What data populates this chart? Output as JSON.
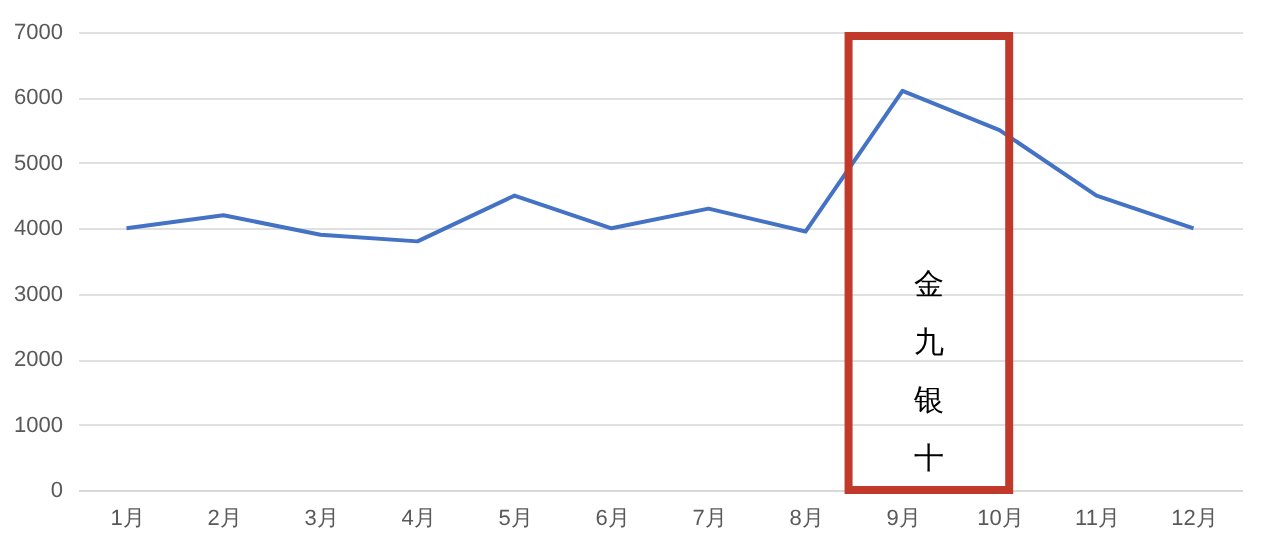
{
  "chart_data": {
    "type": "line",
    "categories": [
      "1月",
      "2月",
      "3月",
      "4月",
      "5月",
      "6月",
      "7月",
      "8月",
      "9月",
      "10月",
      "11月",
      "12月"
    ],
    "series": [
      {
        "color": "#4472c4",
        "values": [
          4000,
          4200,
          3900,
          3800,
          4500,
          4000,
          4300,
          3950,
          6100,
          5500,
          4500,
          4000
        ]
      }
    ],
    "ylim": [
      0,
      7000
    ],
    "yticks": [
      0,
      1000,
      2000,
      3000,
      4000,
      5000,
      6000,
      7000
    ],
    "grid": "y",
    "marker": "none",
    "line_style": "solid",
    "annotations": [
      "金九银十"
    ]
  }
}
